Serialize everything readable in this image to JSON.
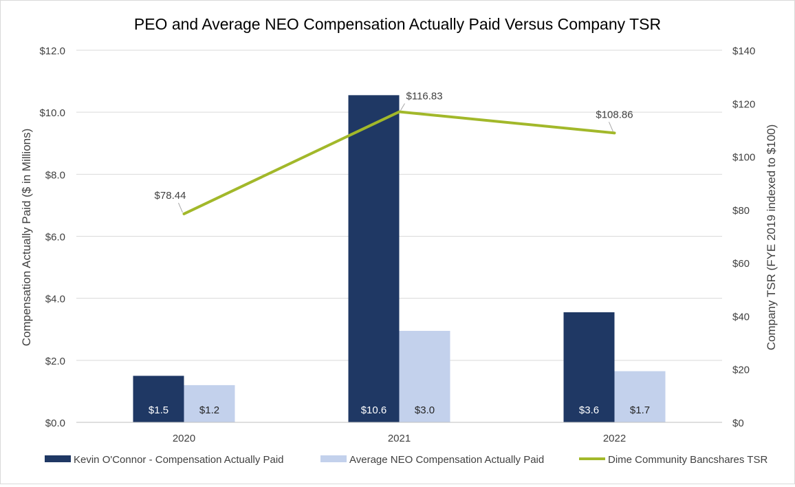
{
  "chart_data": {
    "type": "bar",
    "title": "PEO and Average NEO Compensation Actually Paid Versus Company TSR",
    "categories": [
      "2020",
      "2021",
      "2022"
    ],
    "ylabel": "Compensation Actually Paid ($ in Millions)",
    "y2label": "Company TSR (FYE 2019 indexed to $100)",
    "ylim": [
      0,
      12
    ],
    "y2lim": [
      0,
      140
    ],
    "yticks": [
      "$0.0",
      "$2.0",
      "$4.0",
      "$6.0",
      "$8.0",
      "$10.0",
      "$12.0"
    ],
    "y2ticks": [
      "$0",
      "$20",
      "$40",
      "$60",
      "$80",
      "$100",
      "$120",
      "$140"
    ],
    "grid": true,
    "legend_position": "bottom",
    "series": [
      {
        "name": "Kevin O'Connor - Compensation Actually Paid",
        "type": "bar",
        "color": "#1f3864",
        "values": [
          1.5,
          10.55,
          3.55
        ],
        "labels": [
          "$1.5",
          "$10.6",
          "$3.6"
        ]
      },
      {
        "name": "Average NEO Compensation Actually Paid",
        "type": "bar",
        "color": "#c3d1ec",
        "values": [
          1.2,
          2.95,
          1.65
        ],
        "labels": [
          "$1.2",
          "$3.0",
          "$1.7"
        ]
      },
      {
        "name": "Dime Community Bancshares TSR",
        "type": "line",
        "axis": "right",
        "color": "#a2b82a",
        "values": [
          78.44,
          116.83,
          108.86
        ],
        "labels": [
          "$78.44",
          "$116.83",
          "$108.86"
        ]
      }
    ]
  }
}
